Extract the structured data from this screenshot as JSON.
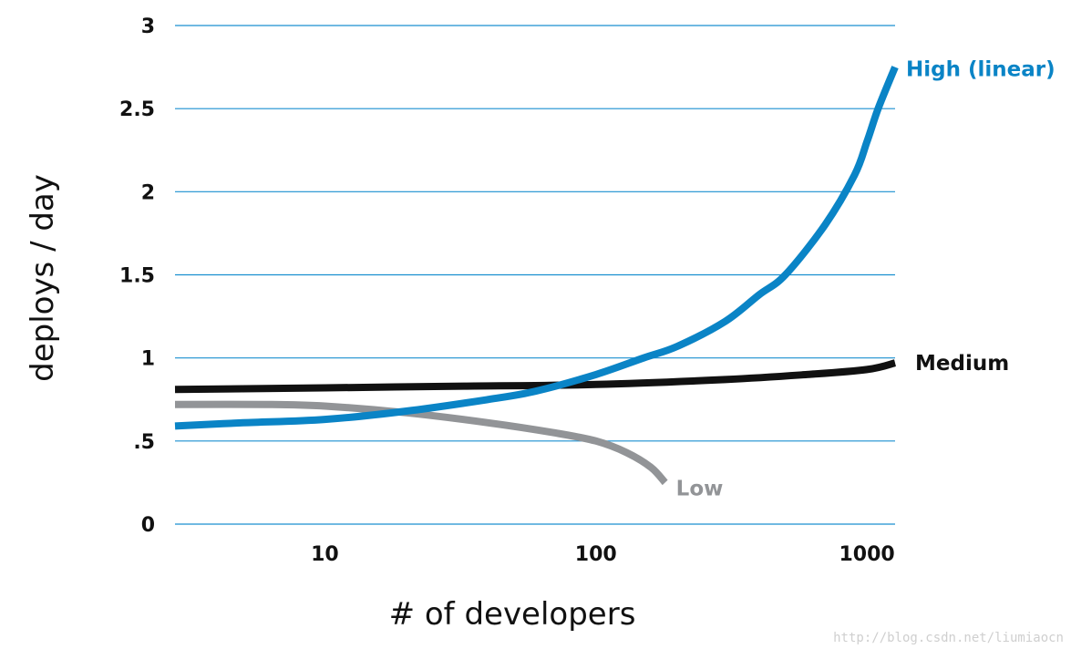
{
  "chart_data": {
    "type": "line",
    "title": "",
    "xlabel": "# of developers",
    "ylabel": "deploys / day",
    "x_scale": "log",
    "xlim": [
      2.8,
      1270
    ],
    "ylim": [
      0,
      3
    ],
    "x_ticks": [
      {
        "value": 10,
        "label": "10"
      },
      {
        "value": 100,
        "label": "100"
      },
      {
        "value": 1000,
        "label": "1000"
      }
    ],
    "y_ticks": [
      {
        "value": 0,
        "label": "0"
      },
      {
        "value": 0.5,
        "label": ".5"
      },
      {
        "value": 1,
        "label": "1"
      },
      {
        "value": 1.5,
        "label": "1.5"
      },
      {
        "value": 2,
        "label": "2"
      },
      {
        "value": 2.5,
        "label": "2.5"
      },
      {
        "value": 3,
        "label": "3"
      }
    ],
    "grid": "horizontal",
    "series": [
      {
        "name": "High (linear)",
        "color": "#0a84c6",
        "points": [
          [
            2.8,
            0.59
          ],
          [
            5,
            0.61
          ],
          [
            10,
            0.63
          ],
          [
            20,
            0.68
          ],
          [
            40,
            0.75
          ],
          [
            60,
            0.8
          ],
          [
            100,
            0.9
          ],
          [
            150,
            1.0
          ],
          [
            200,
            1.07
          ],
          [
            300,
            1.22
          ],
          [
            400,
            1.38
          ],
          [
            500,
            1.5
          ],
          [
            700,
            1.8
          ],
          [
            900,
            2.1
          ],
          [
            1000,
            2.3
          ],
          [
            1100,
            2.5
          ],
          [
            1270,
            2.75
          ]
        ]
      },
      {
        "name": "Medium",
        "color": "#111111",
        "points": [
          [
            2.8,
            0.81
          ],
          [
            10,
            0.82
          ],
          [
            30,
            0.83
          ],
          [
            100,
            0.84
          ],
          [
            300,
            0.87
          ],
          [
            600,
            0.9
          ],
          [
            1000,
            0.93
          ],
          [
            1270,
            0.97
          ]
        ]
      },
      {
        "name": "Low",
        "color": "#929497",
        "points": [
          [
            2.8,
            0.72
          ],
          [
            6,
            0.72
          ],
          [
            10,
            0.71
          ],
          [
            20,
            0.67
          ],
          [
            40,
            0.61
          ],
          [
            70,
            0.55
          ],
          [
            100,
            0.5
          ],
          [
            130,
            0.43
          ],
          [
            160,
            0.34
          ],
          [
            180,
            0.25
          ]
        ]
      }
    ]
  },
  "watermark": "http://blog.csdn.net/liumiaocn"
}
